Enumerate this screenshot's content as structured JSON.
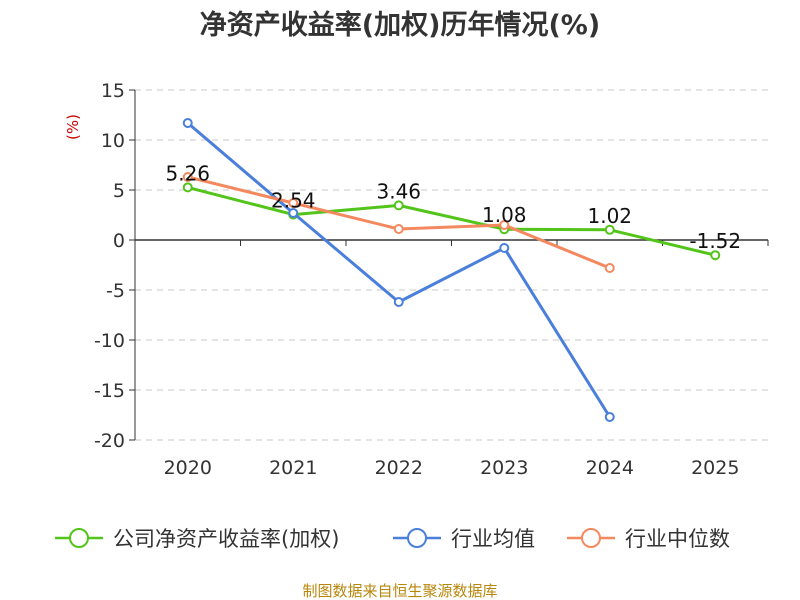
{
  "chart_data": {
    "type": "line",
    "title": "净资产收益率(加权)历年情况(%)",
    "ylabel": "(%)",
    "xlabel": "",
    "categories": [
      "2020",
      "2021",
      "2022",
      "2023",
      "2024",
      "2025"
    ],
    "ylim": [
      -20,
      15
    ],
    "yticks": [
      15,
      10,
      5,
      0,
      -5,
      -10,
      -15,
      -20
    ],
    "grid": true,
    "legend_position": "bottom",
    "series": [
      {
        "name": "公司净资产收益率(加权)",
        "color": "#52c41a",
        "values": [
          5.26,
          2.54,
          3.46,
          1.08,
          1.02,
          -1.52
        ],
        "labels": [
          "5.26",
          "2.54",
          "3.46",
          "1.08",
          "1.02",
          "-1.52"
        ]
      },
      {
        "name": "行业均值",
        "color": "#4a7fdc",
        "values": [
          11.7,
          2.7,
          -6.2,
          -0.8,
          -17.7,
          null
        ]
      },
      {
        "name": "行业中位数",
        "color": "#f4895f",
        "values": [
          6.3,
          3.7,
          1.1,
          1.5,
          -2.8,
          null
        ]
      }
    ],
    "source": "制图数据来自恒生聚源数据库"
  }
}
